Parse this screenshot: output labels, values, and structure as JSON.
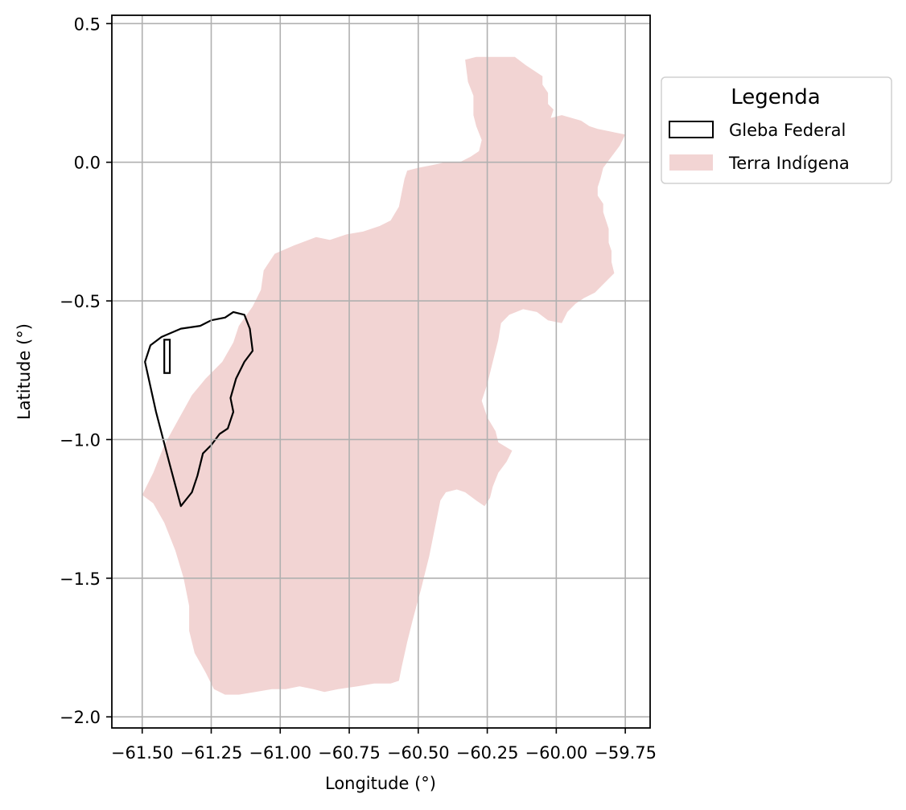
{
  "chart_data": {
    "type": "map",
    "xlabel": "Longitude (°)",
    "ylabel": "Latitude (°)",
    "xlim": [
      -61.61,
      -59.66
    ],
    "ylim": [
      -2.04,
      0.53
    ],
    "xticks": [
      -61.5,
      -61.25,
      -61.0,
      -60.75,
      -60.5,
      -60.25,
      -60.0,
      -59.75
    ],
    "xtick_labels": [
      "−61.50",
      "−61.25",
      "−61.00",
      "−60.75",
      "−60.50",
      "−60.25",
      "−60.00",
      "−59.75"
    ],
    "yticks": [
      0.5,
      0.0,
      -0.5,
      -1.0,
      -1.5,
      -2.0
    ],
    "ytick_labels": [
      "0.5",
      "0.0",
      "−0.5",
      "−1.0",
      "−1.5",
      "−2.0"
    ],
    "grid": true,
    "legend": {
      "title": "Legenda",
      "placement": "outside-upper-right",
      "entries": [
        {
          "label": "Gleba Federal",
          "style": "outline",
          "color": "#000000"
        },
        {
          "label": "Terra Indígena",
          "style": "fill",
          "color": "#f2d4d3"
        }
      ]
    },
    "layers": [
      {
        "name": "Terra Indígena",
        "fill": "#f2d4d3",
        "coordinates": [
          [
            -60.15,
            0.38
          ],
          [
            -60.11,
            0.35
          ],
          [
            -60.05,
            0.31
          ],
          [
            -60.05,
            0.28
          ],
          [
            -60.03,
            0.25
          ],
          [
            -60.03,
            0.21
          ],
          [
            -60.01,
            0.19
          ],
          [
            -60.02,
            0.16
          ],
          [
            -59.98,
            0.17
          ],
          [
            -59.91,
            0.15
          ],
          [
            -59.88,
            0.13
          ],
          [
            -59.85,
            0.12
          ],
          [
            -59.8,
            0.11
          ],
          [
            -59.75,
            0.1
          ],
          [
            -59.77,
            0.06
          ],
          [
            -59.8,
            0.02
          ],
          [
            -59.83,
            -0.02
          ],
          [
            -59.84,
            -0.06
          ],
          [
            -59.85,
            -0.09
          ],
          [
            -59.85,
            -0.12
          ],
          [
            -59.83,
            -0.15
          ],
          [
            -59.83,
            -0.18
          ],
          [
            -59.81,
            -0.24
          ],
          [
            -59.81,
            -0.29
          ],
          [
            -59.8,
            -0.32
          ],
          [
            -59.8,
            -0.36
          ],
          [
            -59.79,
            -0.4
          ],
          [
            -59.83,
            -0.44
          ],
          [
            -59.86,
            -0.47
          ],
          [
            -59.9,
            -0.49
          ],
          [
            -59.93,
            -0.51
          ],
          [
            -59.96,
            -0.54
          ],
          [
            -59.98,
            -0.58
          ],
          [
            -60.03,
            -0.57
          ],
          [
            -60.07,
            -0.54
          ],
          [
            -60.12,
            -0.53
          ],
          [
            -60.17,
            -0.55
          ],
          [
            -60.2,
            -0.58
          ],
          [
            -60.21,
            -0.64
          ],
          [
            -60.23,
            -0.72
          ],
          [
            -60.25,
            -0.8
          ],
          [
            -60.27,
            -0.86
          ],
          [
            -60.25,
            -0.92
          ],
          [
            -60.22,
            -0.97
          ],
          [
            -60.21,
            -1.01
          ],
          [
            -60.16,
            -1.04
          ],
          [
            -60.18,
            -1.08
          ],
          [
            -60.21,
            -1.12
          ],
          [
            -60.23,
            -1.17
          ],
          [
            -60.24,
            -1.21
          ],
          [
            -60.26,
            -1.24
          ],
          [
            -60.29,
            -1.22
          ],
          [
            -60.33,
            -1.19
          ],
          [
            -60.36,
            -1.18
          ],
          [
            -60.4,
            -1.19
          ],
          [
            -60.42,
            -1.22
          ],
          [
            -60.44,
            -1.32
          ],
          [
            -60.46,
            -1.42
          ],
          [
            -60.49,
            -1.54
          ],
          [
            -60.52,
            -1.65
          ],
          [
            -60.54,
            -1.73
          ],
          [
            -60.56,
            -1.82
          ],
          [
            -60.57,
            -1.87
          ],
          [
            -60.6,
            -1.88
          ],
          [
            -60.66,
            -1.88
          ],
          [
            -60.72,
            -1.89
          ],
          [
            -60.79,
            -1.9
          ],
          [
            -60.84,
            -1.91
          ],
          [
            -60.88,
            -1.9
          ],
          [
            -60.93,
            -1.89
          ],
          [
            -60.98,
            -1.9
          ],
          [
            -61.03,
            -1.9
          ],
          [
            -61.09,
            -1.91
          ],
          [
            -61.15,
            -1.92
          ],
          [
            -61.2,
            -1.92
          ],
          [
            -61.24,
            -1.9
          ],
          [
            -61.27,
            -1.84
          ],
          [
            -61.31,
            -1.77
          ],
          [
            -61.33,
            -1.69
          ],
          [
            -61.33,
            -1.6
          ],
          [
            -61.35,
            -1.5
          ],
          [
            -61.38,
            -1.4
          ],
          [
            -61.42,
            -1.3
          ],
          [
            -61.46,
            -1.23
          ],
          [
            -61.5,
            -1.2
          ],
          [
            -61.46,
            -1.12
          ],
          [
            -61.42,
            -1.02
          ],
          [
            -61.37,
            -0.93
          ],
          [
            -61.32,
            -0.84
          ],
          [
            -61.27,
            -0.78
          ],
          [
            -61.21,
            -0.72
          ],
          [
            -61.17,
            -0.65
          ],
          [
            -61.15,
            -0.59
          ],
          [
            -61.1,
            -0.52
          ],
          [
            -61.07,
            -0.46
          ],
          [
            -61.06,
            -0.39
          ],
          [
            -61.02,
            -0.33
          ],
          [
            -60.95,
            -0.3
          ],
          [
            -60.87,
            -0.27
          ],
          [
            -60.82,
            -0.28
          ],
          [
            -60.76,
            -0.26
          ],
          [
            -60.7,
            -0.25
          ],
          [
            -60.64,
            -0.23
          ],
          [
            -60.6,
            -0.21
          ],
          [
            -60.57,
            -0.16
          ],
          [
            -60.56,
            -0.11
          ],
          [
            -60.55,
            -0.06
          ],
          [
            -60.54,
            -0.03
          ],
          [
            -60.5,
            -0.02
          ],
          [
            -60.45,
            -0.01
          ],
          [
            -60.4,
            0.0
          ],
          [
            -60.35,
            0.0
          ],
          [
            -60.31,
            0.02
          ],
          [
            -60.28,
            0.04
          ],
          [
            -60.27,
            0.08
          ],
          [
            -60.29,
            0.13
          ],
          [
            -60.3,
            0.17
          ],
          [
            -60.3,
            0.24
          ],
          [
            -60.32,
            0.29
          ],
          [
            -60.33,
            0.37
          ],
          [
            -60.29,
            0.38
          ],
          [
            -60.2,
            0.38
          ]
        ]
      },
      {
        "name": "Gleba Federal",
        "stroke": "#000000",
        "coordinates": [
          [
            -61.49,
            -0.72
          ],
          [
            -61.47,
            -0.66
          ],
          [
            -61.43,
            -0.63
          ],
          [
            -61.36,
            -0.6
          ],
          [
            -61.29,
            -0.59
          ],
          [
            -61.25,
            -0.57
          ],
          [
            -61.2,
            -0.56
          ],
          [
            -61.17,
            -0.54
          ],
          [
            -61.13,
            -0.55
          ],
          [
            -61.11,
            -0.6
          ],
          [
            -61.1,
            -0.68
          ],
          [
            -61.13,
            -0.72
          ],
          [
            -61.16,
            -0.78
          ],
          [
            -61.18,
            -0.85
          ],
          [
            -61.17,
            -0.9
          ],
          [
            -61.19,
            -0.96
          ],
          [
            -61.22,
            -0.98
          ],
          [
            -61.25,
            -1.02
          ],
          [
            -61.28,
            -1.05
          ],
          [
            -61.3,
            -1.13
          ],
          [
            -61.32,
            -1.19
          ],
          [
            -61.36,
            -1.24
          ],
          [
            -61.4,
            -1.09
          ],
          [
            -61.45,
            -0.9
          ]
        ],
        "inner_rectangle": [
          [
            -61.42,
            -0.64
          ],
          [
            -61.4,
            -0.76
          ]
        ]
      }
    ]
  }
}
